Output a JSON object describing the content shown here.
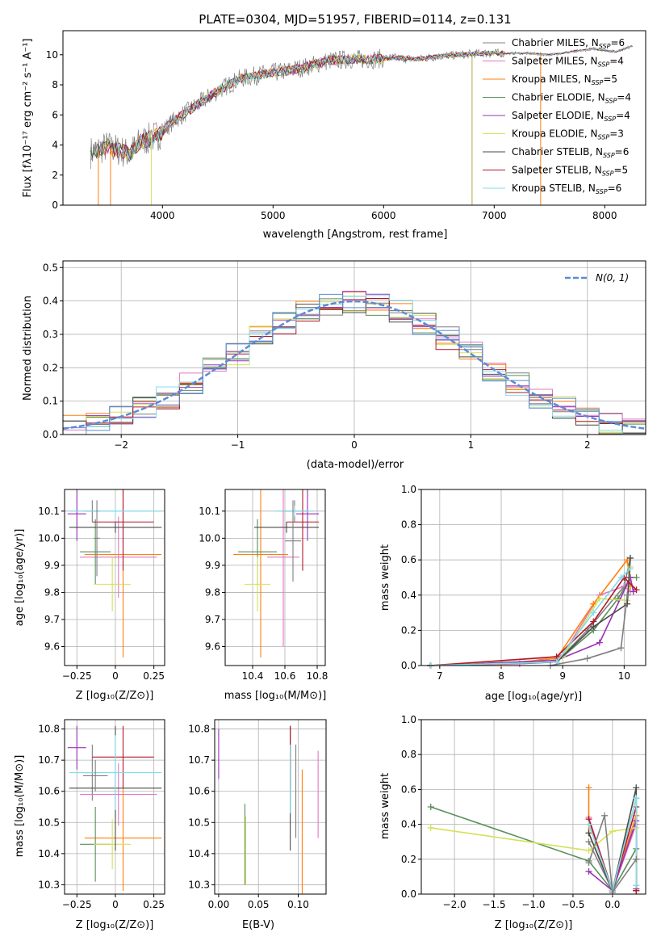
{
  "title": "PLATE=0304, MJD=51957, FIBERID=0114, z=0.131",
  "models": [
    {
      "name": "Chabrier MILES",
      "nssp": "6",
      "color": "#7f7f7f"
    },
    {
      "name": "Salpeter MILES",
      "nssp": "4",
      "color": "#e377c2"
    },
    {
      "name": "Kroupa MILES",
      "nssp": "5",
      "color": "#ff7f0e"
    },
    {
      "name": "Chabrier ELODIE",
      "nssp": "4",
      "color": "#5a8f5a"
    },
    {
      "name": "Salpeter ELODIE",
      "nssp": "4",
      "color": "#9b30b8"
    },
    {
      "name": "Kroupa ELODIE",
      "nssp": "3",
      "color": "#d4e157"
    },
    {
      "name": "Chabrier STELIB",
      "nssp": "6",
      "color": "#4a4a4a"
    },
    {
      "name": "Salpeter STELIB",
      "nssp": "5",
      "color": "#b2182b"
    },
    {
      "name": "Kroupa STELIB",
      "nssp": "6",
      "color": "#80deea"
    }
  ],
  "colors": {
    "blue": "#5b8bd5",
    "gray": "#7f7f7f",
    "grid": "#b0b0b0"
  },
  "text": {
    "nssp_prefix": "N",
    "nssp_sub": "SSP",
    "norm_legend": "N(0, 1)"
  },
  "chart_data": [
    {
      "type": "line",
      "name": "spectrum",
      "xlabel": "wavelength [Angstrom, rest frame]",
      "ylabel": "Flux [fλ10⁻¹⁷ erg cm⁻² s⁻¹ A⁻¹]",
      "xlim": [
        3100,
        8370
      ],
      "ylim": [
        0,
        11.6
      ],
      "xticks": [
        4000,
        5000,
        6000,
        7000,
        8000
      ],
      "yticks": [
        0,
        2,
        4,
        6,
        8,
        10
      ],
      "grid": false,
      "legend": "right",
      "continuum": [
        [
          3350,
          3.5
        ],
        [
          3500,
          3.9
        ],
        [
          3700,
          3.4
        ],
        [
          3800,
          4.2
        ],
        [
          3950,
          4.6
        ],
        [
          4100,
          5.6
        ],
        [
          4300,
          6.6
        ],
        [
          4500,
          7.6
        ],
        [
          4700,
          8.4
        ],
        [
          4900,
          8.7
        ],
        [
          5100,
          8.9
        ],
        [
          5300,
          9.2
        ],
        [
          5500,
          9.6
        ],
        [
          5700,
          9.7
        ],
        [
          5900,
          9.7
        ],
        [
          6100,
          9.8
        ],
        [
          6300,
          9.7
        ],
        [
          6500,
          9.9
        ],
        [
          6700,
          10.0
        ],
        [
          6900,
          10.1
        ],
        [
          7100,
          10.1
        ],
        [
          7300,
          10.1
        ],
        [
          7500,
          10.0
        ],
        [
          7700,
          10.2
        ],
        [
          7900,
          10.4
        ],
        [
          8100,
          10.2
        ],
        [
          8250,
          10.6
        ]
      ],
      "drops": [
        3420,
        3530,
        3900,
        6800,
        7420
      ]
    },
    {
      "type": "bar",
      "name": "residual-histogram",
      "xlabel": "(data-model)/error",
      "ylabel": "Normed distribution",
      "xlim": [
        -2.5,
        2.5
      ],
      "ylim": [
        0,
        0.52
      ],
      "xticks": [
        -2,
        -1,
        0,
        1,
        2
      ],
      "yticks": [
        0.0,
        0.1,
        0.2,
        0.3,
        0.4,
        0.5
      ],
      "grid": true,
      "legend": "top-right",
      "bins": [
        -2.5,
        -2.3,
        -2.1,
        -1.9,
        -1.7,
        -1.5,
        -1.3,
        -1.1,
        -0.9,
        -0.7,
        -0.5,
        -0.3,
        -0.1,
        0.1,
        0.3,
        0.5,
        0.7,
        0.9,
        1.1,
        1.3,
        1.5,
        1.7,
        1.9,
        2.1,
        2.3,
        2.5
      ],
      "normal_mean": 0,
      "normal_sigma": 1
    },
    {
      "type": "scatter",
      "name": "age-vs-metallicity",
      "xlabel": "Z [log₁₀(Z/Z⊙)]",
      "ylabel": "age  [log₁₀(age/yr)]",
      "xlim": [
        -0.33,
        0.32
      ],
      "ylim": [
        9.53,
        10.18
      ],
      "xticks": [
        -0.25,
        0.0,
        0.25
      ],
      "ytickvals": [
        9.6,
        9.7,
        9.8,
        9.9,
        10.0,
        10.1
      ],
      "yticklabels": [
        "9.6",
        "9.7",
        "9.8",
        "9.9",
        "10.0",
        "10.1"
      ],
      "points": [
        {
          "x": -0.15,
          "xe": 0.05,
          "y": 10.1,
          "ye": 0.04,
          "model": 0
        },
        {
          "x": 0.02,
          "xe": 0.25,
          "y": 9.93,
          "ye": 0.15,
          "model": 1
        },
        {
          "x": 0.05,
          "xe": 0.25,
          "y": 9.94,
          "ye": 0.38,
          "model": 2
        },
        {
          "x": -0.13,
          "xe": 0.1,
          "y": 9.95,
          "ye": 0.12,
          "model": 3
        },
        {
          "x": -0.25,
          "xe": 0.06,
          "y": 10.09,
          "ye": 0.1,
          "model": 4
        },
        {
          "x": -0.02,
          "xe": 0.12,
          "y": 9.83,
          "ye": 0.1,
          "model": 5
        },
        {
          "x": 0.0,
          "xe": 0.3,
          "y": 10.04,
          "ye": 0.02,
          "model": 6
        },
        {
          "x": 0.05,
          "xe": 0.2,
          "y": 10.06,
          "ye": 0.18,
          "model": 7
        },
        {
          "x": 0.0,
          "xe": 0.3,
          "y": 10.1,
          "ye": 0.02,
          "model": 8
        },
        {
          "x": -0.12,
          "xe": 0.02,
          "y": 10.0,
          "ye": 0.14,
          "model": 0
        }
      ]
    },
    {
      "type": "scatter",
      "name": "age-vs-mass",
      "xlabel": "mass [log₁₀(M/M⊙)]",
      "ylabel": "",
      "xlim": [
        10.23,
        10.85
      ],
      "ylim": [
        9.53,
        10.18
      ],
      "xticks": [
        10.4,
        10.6,
        10.8
      ],
      "ytickvals": [
        9.6,
        9.7,
        9.8,
        9.9,
        10.0,
        10.1
      ],
      "yticklabels": [
        "9.6",
        "9.7",
        "9.8",
        "9.9",
        "10.0",
        "10.1"
      ],
      "points": [
        {
          "x": 10.66,
          "xe": 0.08,
          "y": 10.1,
          "ye": 0.04,
          "model": 0
        },
        {
          "x": 10.59,
          "xe": 0.1,
          "y": 9.93,
          "ye": 0.33,
          "model": 1
        },
        {
          "x": 10.45,
          "xe": 0.17,
          "y": 9.94,
          "ye": 0.38,
          "model": 2
        },
        {
          "x": 10.43,
          "xe": 0.12,
          "y": 9.95,
          "ye": 0.12,
          "model": 3
        },
        {
          "x": 10.74,
          "xe": 0.07,
          "y": 10.09,
          "ye": 0.1,
          "model": 4
        },
        {
          "x": 10.43,
          "xe": 0.08,
          "y": 9.83,
          "ye": 0.1,
          "model": 5
        },
        {
          "x": 10.61,
          "xe": 0.2,
          "y": 10.04,
          "ye": 0.02,
          "model": 6
        },
        {
          "x": 10.71,
          "xe": 0.1,
          "y": 10.06,
          "ye": 0.18,
          "model": 7
        },
        {
          "x": 10.66,
          "xe": 0.12,
          "y": 10.1,
          "ye": 0.02,
          "model": 8
        },
        {
          "x": 10.65,
          "xe": 0.05,
          "y": 9.99,
          "ye": 0.15,
          "model": 0
        }
      ]
    },
    {
      "type": "line",
      "name": "mass-weight-vs-age",
      "xlabel": "age  [log₁₀(age/yr)]",
      "ylabel": "mass weight",
      "xlim": [
        6.7,
        10.35
      ],
      "ylim": [
        0,
        1
      ],
      "xticks": [
        7,
        8,
        9,
        10
      ],
      "yticks": [
        0.0,
        0.2,
        0.4,
        0.6,
        0.8,
        1.0
      ],
      "grid": true,
      "series": [
        {
          "model": 0,
          "x": [
            6.85,
            8.3,
            8.9,
            9.4,
            10.0,
            10.1
          ],
          "y": [
            0.0,
            0.01,
            0.02,
            0.2,
            0.45,
            0.61
          ]
        },
        {
          "model": 1,
          "x": [
            6.85,
            8.3,
            9.0,
            9.6,
            10.0,
            10.1
          ],
          "y": [
            0.0,
            0.01,
            0.06,
            0.4,
            0.45,
            0.42
          ]
        },
        {
          "model": 2,
          "x": [
            6.85,
            8.0,
            8.9,
            9.5,
            10.05,
            10.1
          ],
          "y": [
            0.0,
            0.01,
            0.04,
            0.35,
            0.6,
            0.45
          ]
        },
        {
          "model": 3,
          "x": [
            6.85,
            8.9,
            9.5,
            9.9,
            10.1,
            10.2
          ],
          "y": [
            0.0,
            0.02,
            0.2,
            0.38,
            0.5,
            0.5
          ]
        },
        {
          "model": 4,
          "x": [
            6.85,
            8.9,
            9.6,
            10.1,
            10.15
          ],
          "y": [
            0.0,
            0.03,
            0.13,
            0.5,
            0.42
          ]
        },
        {
          "model": 5,
          "x": [
            6.85,
            9.0,
            9.6,
            10.05,
            10.1
          ],
          "y": [
            0.0,
            0.05,
            0.38,
            0.37,
            0.56
          ]
        },
        {
          "model": 6,
          "x": [
            6.85,
            8.9,
            9.5,
            10.05,
            10.1
          ],
          "y": [
            0.0,
            0.02,
            0.22,
            0.35,
            0.61
          ]
        },
        {
          "model": 7,
          "x": [
            6.85,
            8.9,
            9.5,
            10.0,
            10.2
          ],
          "y": [
            0.0,
            0.05,
            0.25,
            0.5,
            0.43
          ]
        },
        {
          "model": 8,
          "x": [
            6.85,
            8.9,
            9.5,
            9.95,
            10.1
          ],
          "y": [
            0.0,
            0.02,
            0.3,
            0.5,
            0.55
          ]
        },
        {
          "model": 0,
          "x": [
            8.8,
            9.4,
            9.95,
            10.05
          ],
          "y": [
            0.0,
            0.04,
            0.1,
            0.4
          ]
        }
      ]
    },
    {
      "type": "scatter",
      "name": "mass-vs-metallicity",
      "xlabel": "Z [log₁₀(Z/Z⊙)]",
      "ylabel": "mass [log₁₀(M/M⊙)]",
      "xlim": [
        -0.33,
        0.32
      ],
      "ylim": [
        10.27,
        10.83
      ],
      "xticks": [
        -0.25,
        0.0,
        0.25
      ],
      "ytickvals": [
        10.3,
        10.4,
        10.5,
        10.6,
        10.7,
        10.8
      ],
      "yticklabels": [
        "10.3",
        "10.4",
        "10.5",
        "10.6",
        "10.7",
        "10.8"
      ],
      "points": [
        {
          "x": -0.15,
          "xe": 0.05,
          "y": 10.66,
          "ye": 0.09,
          "model": 0
        },
        {
          "x": 0.02,
          "xe": 0.25,
          "y": 10.59,
          "ye": 0.1,
          "model": 1
        },
        {
          "x": 0.05,
          "xe": 0.25,
          "y": 10.45,
          "ye": 0.17,
          "model": 2
        },
        {
          "x": -0.13,
          "xe": 0.1,
          "y": 10.43,
          "ye": 0.12,
          "model": 3
        },
        {
          "x": -0.25,
          "xe": 0.06,
          "y": 10.74,
          "ye": 0.07,
          "model": 4
        },
        {
          "x": -0.02,
          "xe": 0.12,
          "y": 10.43,
          "ye": 0.08,
          "model": 5
        },
        {
          "x": 0.0,
          "xe": 0.3,
          "y": 10.61,
          "ye": 0.2,
          "model": 6
        },
        {
          "x": 0.05,
          "xe": 0.2,
          "y": 10.71,
          "ye": 0.1,
          "model": 7
        },
        {
          "x": 0.0,
          "xe": 0.3,
          "y": 10.66,
          "ye": 0.12,
          "model": 8
        },
        {
          "x": -0.13,
          "xe": 0.08,
          "y": 10.65,
          "ye": 0.05,
          "model": 0
        }
      ]
    },
    {
      "type": "scatter",
      "name": "mass-vs-ebv",
      "xlabel": "E(B-V)",
      "ylabel": "",
      "xlim": [
        -0.005,
        0.135
      ],
      "ylim": [
        10.27,
        10.83
      ],
      "xticks": [
        0.0,
        0.05,
        0.1
      ],
      "xticklabels": [
        "0.00",
        "0.05",
        "0.10"
      ],
      "ytickvals": [
        10.3,
        10.4,
        10.5,
        10.6,
        10.7,
        10.8
      ],
      "yticklabels": [
        "10.3",
        "10.4",
        "10.5",
        "10.6",
        "10.7",
        "10.8"
      ],
      "points": [
        {
          "x": 0.09,
          "y": 10.66,
          "ye": 0.09,
          "model": 0
        },
        {
          "x": 0.125,
          "y": 10.59,
          "ye": 0.14,
          "model": 1
        },
        {
          "x": 0.105,
          "y": 10.45,
          "ye": 0.22,
          "model": 2
        },
        {
          "x": 0.033,
          "y": 10.43,
          "ye": 0.13,
          "model": 3
        },
        {
          "x": 0.0,
          "y": 10.72,
          "ye": 0.08,
          "model": 4
        },
        {
          "x": 0.034,
          "y": 10.41,
          "ye": 0.11,
          "model": 5
        },
        {
          "x": 0.09,
          "y": 10.61,
          "ye": 0.2,
          "model": 6
        },
        {
          "x": 0.09,
          "y": 10.71,
          "ye": 0.1,
          "model": 7
        },
        {
          "x": 0.09,
          "y": 10.64,
          "ye": 0.11,
          "model": 8
        },
        {
          "x": 0.097,
          "y": 10.6,
          "ye": 0.15,
          "model": 0
        }
      ]
    },
    {
      "type": "line",
      "name": "mass-weight-vs-metallicity",
      "xlabel": "Z [log₁₀(Z/Z⊙)]",
      "ylabel": "mass weight",
      "xlim": [
        -2.42,
        0.42
      ],
      "ylim": [
        0,
        1
      ],
      "xticks": [
        -2.0,
        -1.5,
        -1.0,
        -0.5,
        0.0
      ],
      "xticklabels": [
        "−2.0",
        "−1.5",
        "−1.0",
        "−0.5",
        "0.0"
      ],
      "yticks": [
        0.0,
        0.2,
        0.4,
        0.6,
        0.8,
        1.0
      ],
      "grid": true,
      "series": [
        {
          "model": 0,
          "x": [
            -0.3,
            0.0,
            0.3,
            0.3
          ],
          "y": [
            0.3,
            0.02,
            0.55,
            0.2
          ]
        },
        {
          "model": 1,
          "x": [
            -0.3,
            0.0,
            0.3,
            0.3
          ],
          "y": [
            0.44,
            0.02,
            0.4,
            0.05
          ]
        },
        {
          "model": 2,
          "x": [
            -0.3,
            -0.3,
            0.0,
            0.3,
            0.3
          ],
          "y": [
            0.61,
            0.35,
            0.02,
            0.45,
            0.03
          ]
        },
        {
          "model": 3,
          "x": [
            -2.3,
            -0.3,
            0.0,
            0.3
          ],
          "y": [
            0.5,
            0.19,
            0.02,
            0.26
          ]
        },
        {
          "model": 4,
          "x": [
            -0.3,
            0.0,
            0.3,
            0.3
          ],
          "y": [
            0.13,
            0.02,
            0.42,
            0.03
          ]
        },
        {
          "model": 5,
          "x": [
            -2.3,
            -0.3,
            0.0,
            0.3
          ],
          "y": [
            0.38,
            0.25,
            0.36,
            0.38
          ]
        },
        {
          "model": 6,
          "x": [
            -0.3,
            0.0,
            0.3,
            0.3
          ],
          "y": [
            0.35,
            0.02,
            0.61,
            0.02
          ]
        },
        {
          "model": 7,
          "x": [
            -0.3,
            0.0,
            0.3,
            0.3
          ],
          "y": [
            0.43,
            0.02,
            0.5,
            0.02
          ]
        },
        {
          "model": 8,
          "x": [
            -0.3,
            0.0,
            0.3,
            0.3
          ],
          "y": [
            0.4,
            0.02,
            0.55,
            0.05
          ]
        },
        {
          "model": 0,
          "x": [
            -0.3,
            -0.1,
            0.0,
            0.3
          ],
          "y": [
            0.18,
            0.45,
            0.01,
            0.2
          ]
        }
      ]
    }
  ]
}
